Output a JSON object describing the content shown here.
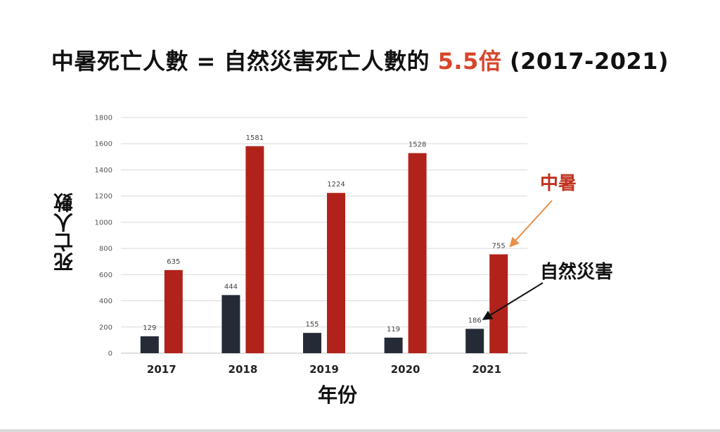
{
  "title": {
    "prefix": "中暑死亡人數 = 自然災害死亡人數的 ",
    "highlight": "5.5倍",
    "suffix": " (2017-2021)"
  },
  "colors": {
    "heatstroke": "#b1231a",
    "natural": "#252b36",
    "highlight": "#d9452b",
    "grid": "#d9d9d9",
    "arrow_heat": "#e8904a",
    "arrow_nat": "#111111"
  },
  "chart_data": {
    "type": "bar",
    "xlabel": "年份",
    "ylabel": "死亡人數",
    "ylim": [
      0,
      1800
    ],
    "yticks": [
      0,
      200,
      400,
      600,
      800,
      1000,
      1200,
      1400,
      1600,
      1800
    ],
    "grid": true,
    "categories": [
      "2017",
      "2018",
      "2019",
      "2020",
      "2021"
    ],
    "series": [
      {
        "name": "自然災害",
        "values": [
          129,
          444,
          155,
          119,
          186
        ]
      },
      {
        "name": "中暑",
        "values": [
          635,
          1581,
          1224,
          1528,
          755
        ]
      }
    ],
    "annotations": [
      {
        "text": "中暑",
        "series": "中暑",
        "category": "2021"
      },
      {
        "text": "自然災害",
        "series": "自然災害",
        "category": "2021"
      }
    ]
  }
}
